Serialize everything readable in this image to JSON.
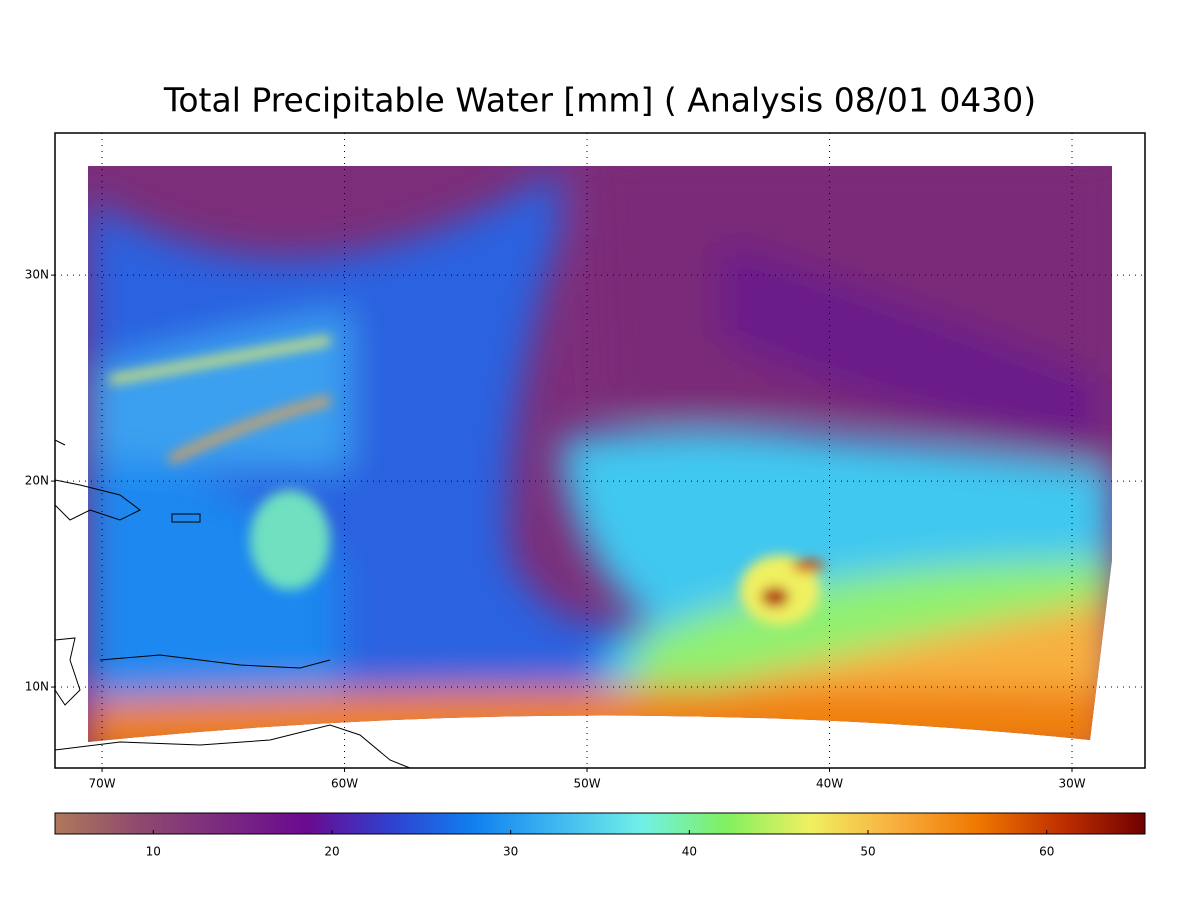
{
  "title": "Total Precipitable Water [mm]  (  Analysis  08/01 0430)",
  "map": {
    "xlim": [
      -71.94,
      -26.99
    ],
    "ylim": [
      6.07,
      36.9
    ],
    "xticks": [
      {
        "value": -70,
        "label": "70W"
      },
      {
        "value": -60,
        "label": "60W"
      },
      {
        "value": -50,
        "label": "50W"
      },
      {
        "value": -40,
        "label": "40W"
      },
      {
        "value": -30,
        "label": "30W"
      }
    ],
    "yticks": [
      {
        "value": 10,
        "label": "10N"
      },
      {
        "value": 20,
        "label": "20N"
      },
      {
        "value": 30,
        "label": "30N"
      }
    ],
    "grid": true
  },
  "colorbar": {
    "lim": [
      4.5,
      65.5
    ],
    "ticks": [
      10,
      20,
      30,
      40,
      50,
      60
    ],
    "colors": [
      "#b0785a",
      "#8e4a6e",
      "#7a2a80",
      "#6a0a90",
      "#3040d0",
      "#1080f0",
      "#40b8f0",
      "#70f0e8",
      "#80f060",
      "#f0f060",
      "#f8b040",
      "#f07800",
      "#c03000",
      "#700000"
    ]
  }
}
